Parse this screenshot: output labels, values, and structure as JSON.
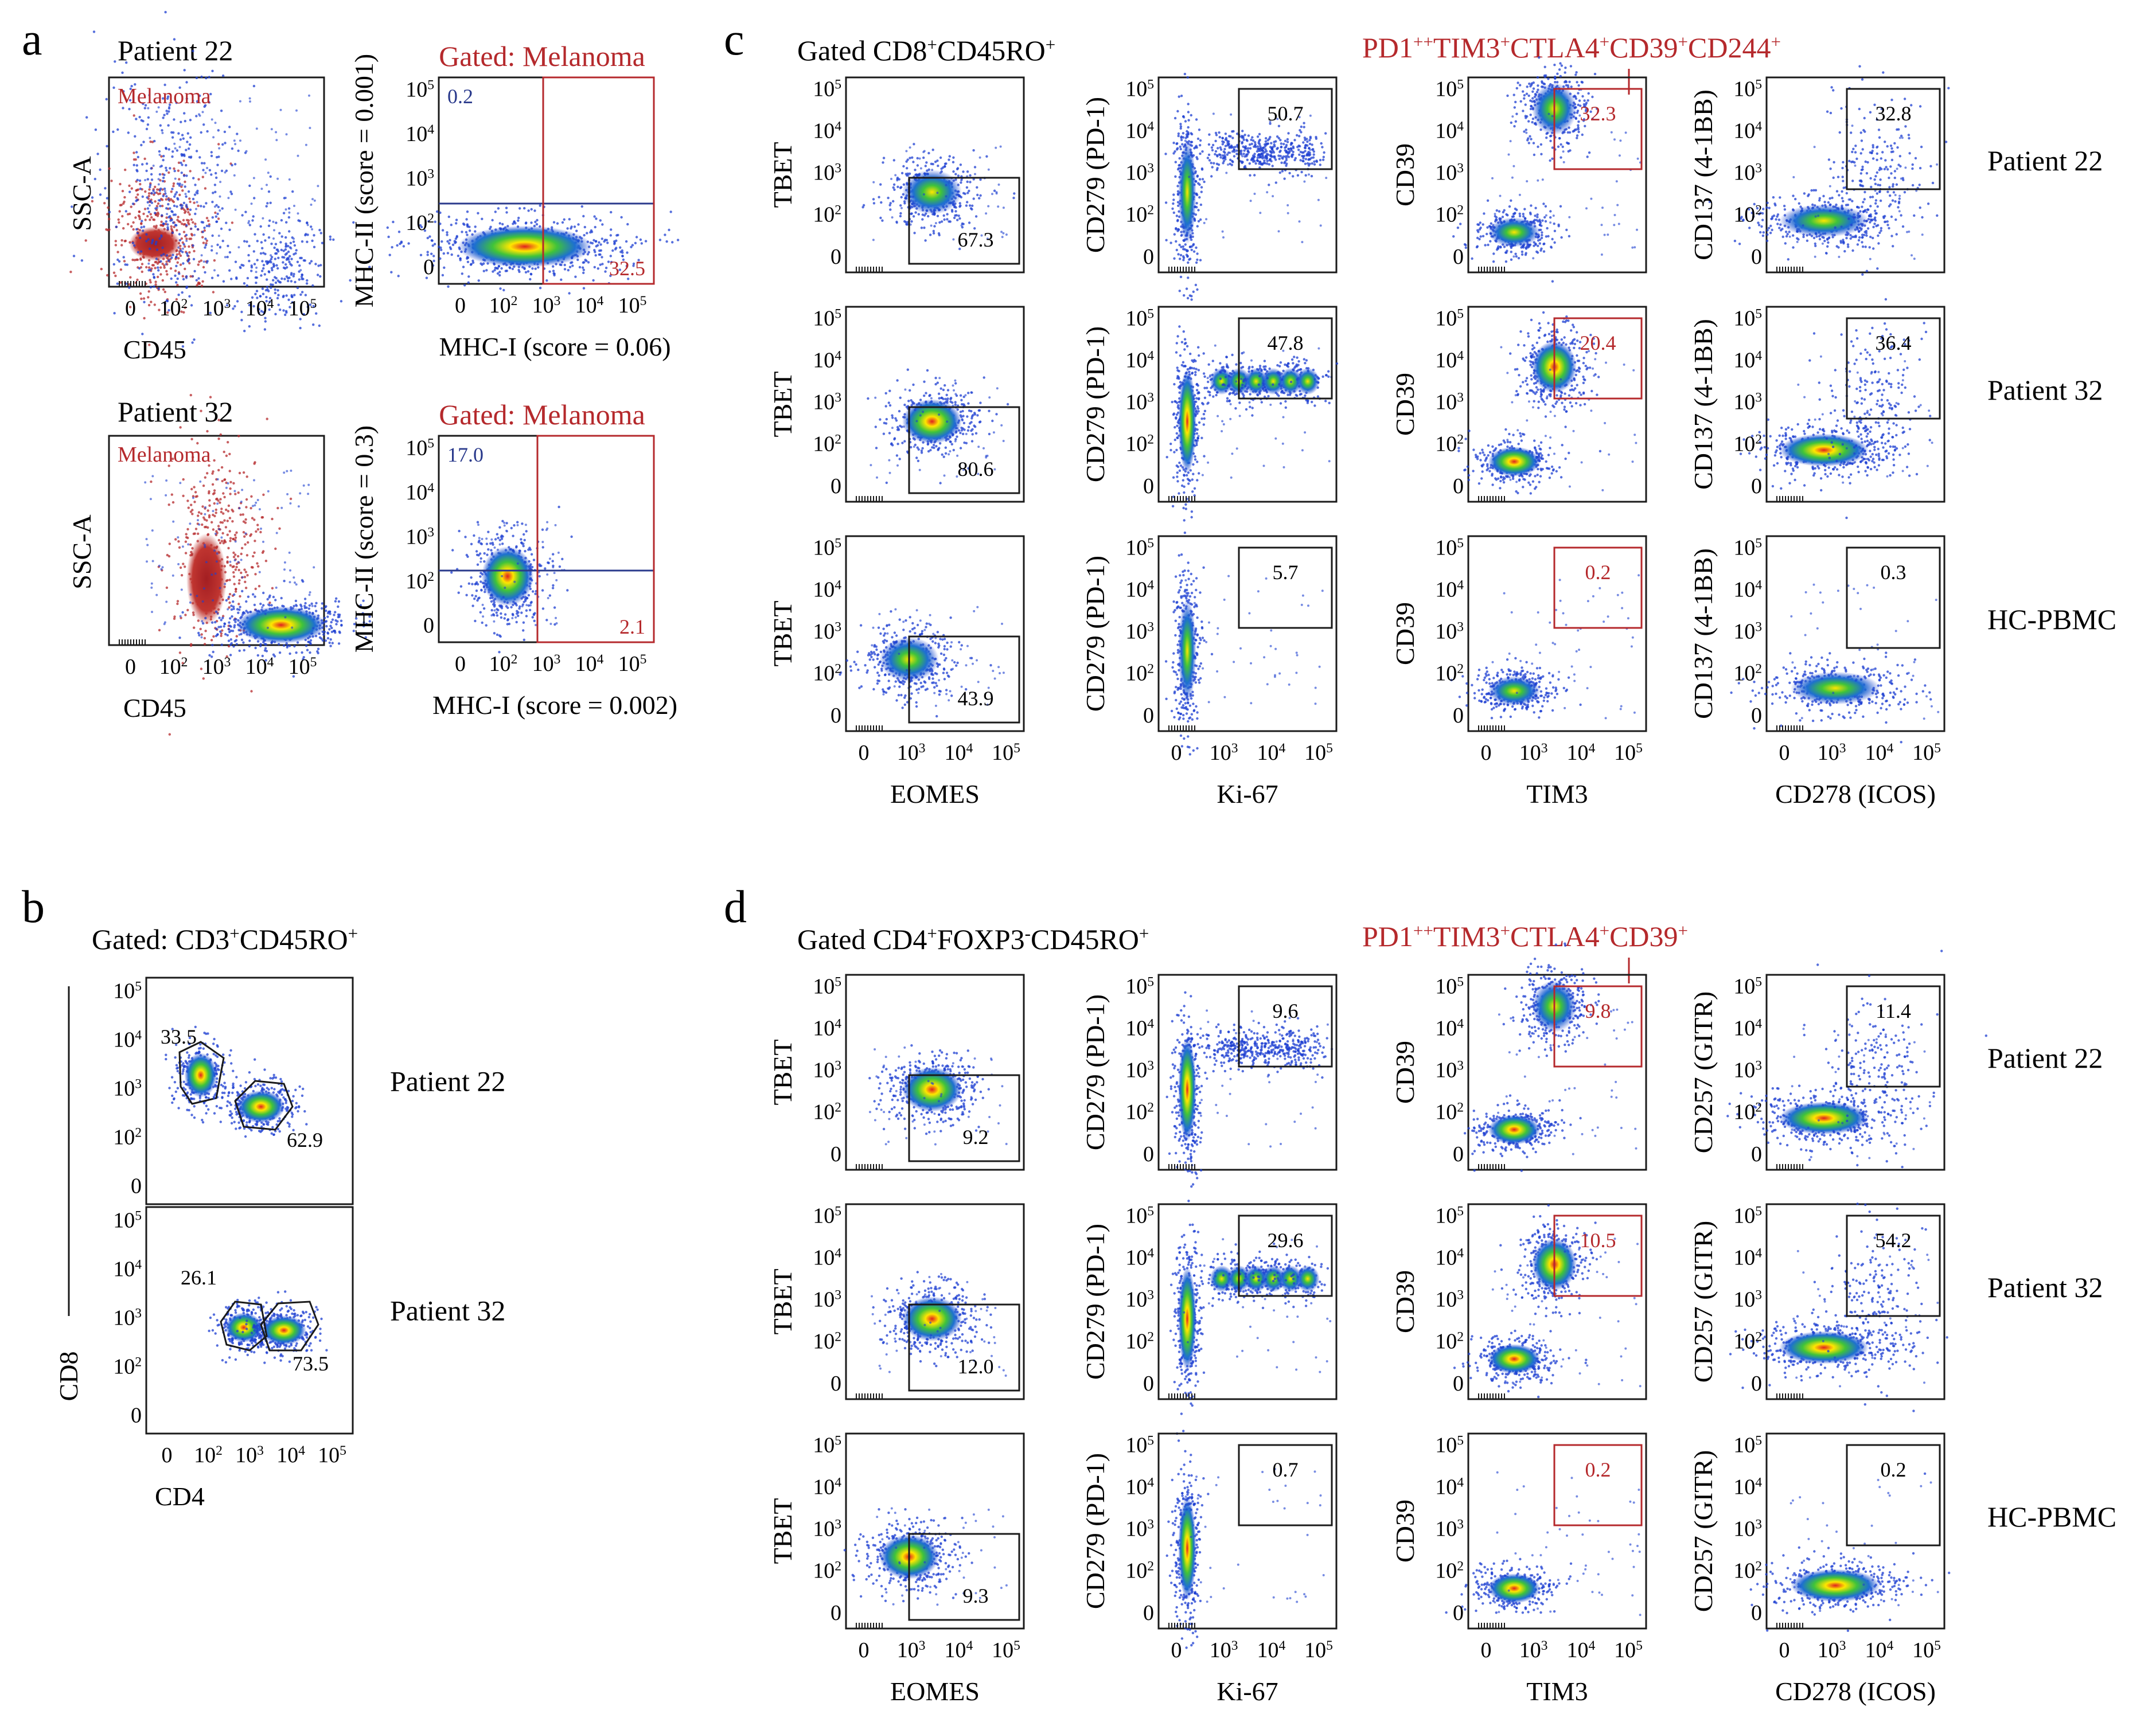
{
  "panel_letters": {
    "a": "a",
    "b": "b",
    "c": "c",
    "d": "d"
  },
  "colors": {
    "frame": "#1a1a1a",
    "red": "#b5292c",
    "blue": "#2a3a8c",
    "melanoma_cells": "#b5292c"
  },
  "panel_a": {
    "blocks": [
      {
        "patient": "Patient 22",
        "scatter": {
          "population_label": "Melanoma",
          "x_label": "CD45",
          "y_label": "SSC-A",
          "x_ticks": [
            "0",
            "10",
            "10",
            "10",
            "10"
          ],
          "x_exps": [
            "",
            "2",
            "3",
            "4",
            "5"
          ]
        },
        "gated": {
          "title": "Gated: Melanoma",
          "x_label": "MHC-I (score = 0.06)",
          "y_label": "MHC-II (score = 0.001)",
          "q_top_left": "0.2",
          "q_bottom_right": "32.5",
          "y_ticks": [
            "10",
            "10",
            "10",
            "10",
            "0"
          ],
          "y_exps": [
            "5",
            "4",
            "3",
            "2",
            ""
          ],
          "x_ticks": [
            "0",
            "10",
            "10",
            "10",
            "10"
          ],
          "x_exps": [
            "",
            "2",
            "3",
            "4",
            "5"
          ]
        }
      },
      {
        "patient": "Patient 32",
        "scatter": {
          "population_label": "Melanoma",
          "x_label": "CD45",
          "y_label": "SSC-A",
          "x_ticks": [
            "0",
            "10",
            "10",
            "10",
            "10"
          ],
          "x_exps": [
            "",
            "2",
            "3",
            "4",
            "5"
          ]
        },
        "gated": {
          "title": "Gated: Melanoma",
          "x_label": "MHC-I (score = 0.002)",
          "y_label": "MHC-II (score = 0.3)",
          "q_top_left": "17.0",
          "q_bottom_right": "2.1",
          "y_ticks": [
            "10",
            "10",
            "10",
            "10",
            "0"
          ],
          "y_exps": [
            "5",
            "4",
            "3",
            "2",
            ""
          ],
          "x_ticks": [
            "0",
            "10",
            "10",
            "10",
            "10"
          ],
          "x_exps": [
            "",
            "2",
            "3",
            "4",
            "5"
          ]
        }
      }
    ]
  },
  "panel_b": {
    "header": "Gated: CD3+CD45RO+",
    "header_parts": [
      "Gated: CD3",
      "+",
      "CD45RO",
      "+"
    ],
    "x_label": "CD4",
    "y_label": "CD8",
    "x_ticks": [
      "0",
      "10",
      "10",
      "10",
      "10"
    ],
    "x_exps": [
      "",
      "2",
      "3",
      "4",
      "5"
    ],
    "y_ticks": [
      "10",
      "10",
      "10",
      "10",
      "0"
    ],
    "y_exps": [
      "5",
      "4",
      "3",
      "2",
      ""
    ],
    "plots": [
      {
        "patient": "Patient 22",
        "cd8_gate": "33.5",
        "cd4_gate": "62.9"
      },
      {
        "patient": "Patient 32",
        "cd8_gate": "26.1",
        "cd4_gate": "73.5"
      }
    ]
  },
  "panel_c": {
    "header": "Gated CD8+CD45RO+",
    "header_parts": [
      "Gated CD8",
      "+",
      "CD45RO",
      "+"
    ],
    "red_header": "PD1++TIM3+CTLA4+CD39+CD244+",
    "red_header_parts": [
      "PD1",
      "++",
      "TIM3",
      "+",
      "CTLA4",
      "+",
      "CD39",
      "+",
      "CD244",
      "+"
    ],
    "columns": [
      {
        "x_label": "EOMES",
        "y_label": "TBET"
      },
      {
        "x_label": "Ki-67",
        "y_label": "CD279 (PD-1)"
      },
      {
        "x_label": "TIM3",
        "y_label": "CD39"
      },
      {
        "x_label": "CD278 (ICOS)",
        "y_label": "CD137 (4-1BB)"
      }
    ],
    "rows": [
      {
        "label": "Patient 22",
        "values": [
          "67.3",
          "50.7",
          "32.3",
          "32.8"
        ]
      },
      {
        "label": "Patient 32",
        "values": [
          "80.6",
          "47.8",
          "20.4",
          "36.4"
        ]
      },
      {
        "label": "HC-PBMC",
        "values": [
          "43.9",
          "5.7",
          "0.2",
          "0.3"
        ]
      }
    ]
  },
  "panel_d": {
    "header": "Gated CD4+FOXP3-CD45RO+",
    "header_parts": [
      "Gated CD4",
      "+",
      "FOXP3",
      "-",
      "CD45RO",
      "+"
    ],
    "red_header": "PD1++TIM3+CTLA4+CD39+",
    "red_header_parts": [
      "PD1",
      "++",
      "TIM3",
      "+",
      "CTLA4",
      "+",
      "CD39",
      "+"
    ],
    "columns": [
      {
        "x_label": "EOMES",
        "y_label": "TBET"
      },
      {
        "x_label": "Ki-67",
        "y_label": "CD279 (PD-1)"
      },
      {
        "x_label": "TIM3",
        "y_label": "CD39"
      },
      {
        "x_label": "CD278 (ICOS)",
        "y_label": "CD257 (GITR)"
      }
    ],
    "rows": [
      {
        "label": "Patient 22",
        "values": [
          "9.2",
          "9.6",
          "9.8",
          "11.4"
        ]
      },
      {
        "label": "Patient 32",
        "values": [
          "12.0",
          "29.6",
          "10.5",
          "54.2"
        ]
      },
      {
        "label": "HC-PBMC",
        "values": [
          "9.3",
          "0.7",
          "0.2",
          "0.2"
        ]
      }
    ]
  },
  "grid_ticks": {
    "y_ticks": [
      "10",
      "10",
      "10",
      "10",
      "0"
    ],
    "y_exps": [
      "5",
      "4",
      "3",
      "2",
      ""
    ],
    "x_ticks": [
      "0",
      "10",
      "10",
      "10"
    ],
    "x_exps": [
      "",
      "3",
      "4",
      "5"
    ]
  }
}
